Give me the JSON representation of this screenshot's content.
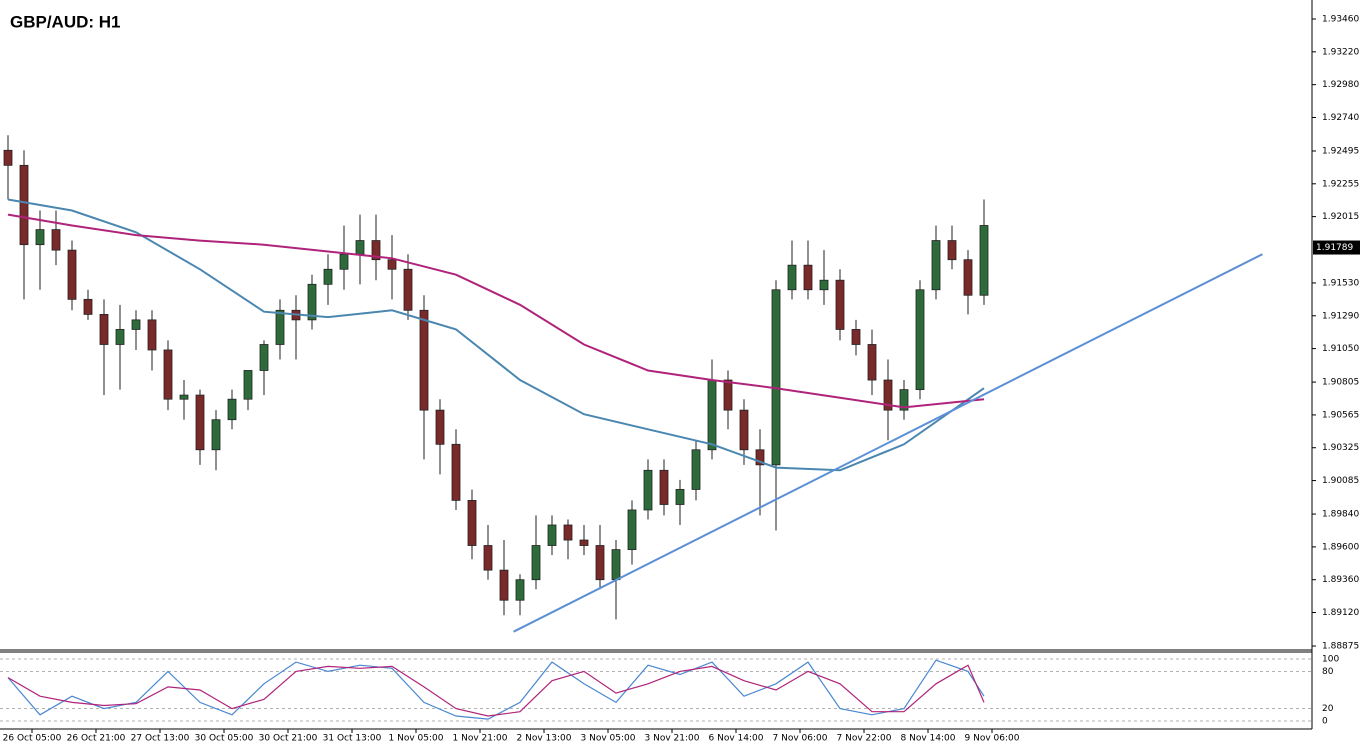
{
  "chart_data": {
    "type": "candlestick",
    "title": "GBP/AUD: H1",
    "up_color": "#2e6b3a",
    "down_color": "#7a2a2a",
    "ohlc": [
      [
        1.925,
        1.9261,
        1.9214,
        1.9239
      ],
      [
        1.9239,
        1.925,
        1.9141,
        1.9181
      ],
      [
        1.9181,
        1.9206,
        1.9148,
        1.9192
      ],
      [
        1.9192,
        1.9206,
        1.9166,
        1.9177
      ],
      [
        1.9177,
        1.9184,
        1.9133,
        1.9141
      ],
      [
        1.9141,
        1.9148,
        1.9126,
        1.913
      ],
      [
        1.913,
        1.9141,
        1.9071,
        1.9108
      ],
      [
        1.9108,
        1.9137,
        1.9075,
        1.9119
      ],
      [
        1.9119,
        1.9133,
        1.9104,
        1.9126
      ],
      [
        1.9126,
        1.9133,
        1.9089,
        1.9104
      ],
      [
        1.9104,
        1.9111,
        1.906,
        1.9068
      ],
      [
        1.9068,
        1.9082,
        1.9053,
        1.9071
      ],
      [
        1.9071,
        1.9075,
        1.902,
        1.9031
      ],
      [
        1.9031,
        1.906,
        1.9016,
        1.9053
      ],
      [
        1.9053,
        1.9075,
        1.9046,
        1.9068
      ],
      [
        1.9068,
        1.9089,
        1.906,
        1.9089
      ],
      [
        1.9089,
        1.9111,
        1.9071,
        1.9108
      ],
      [
        1.9108,
        1.9141,
        1.9097,
        1.9133
      ],
      [
        1.9133,
        1.9144,
        1.9097,
        1.9126
      ],
      [
        1.9126,
        1.9159,
        1.9119,
        1.9152
      ],
      [
        1.9152,
        1.9174,
        1.9137,
        1.9163
      ],
      [
        1.9163,
        1.9195,
        1.9148,
        1.9174
      ],
      [
        1.9174,
        1.9203,
        1.9152,
        1.9184
      ],
      [
        1.9184,
        1.9203,
        1.9155,
        1.917
      ],
      [
        1.917,
        1.9188,
        1.9141,
        1.9163
      ],
      [
        1.9163,
        1.9174,
        1.9126,
        1.9133
      ],
      [
        1.9133,
        1.9144,
        1.9024,
        1.906
      ],
      [
        1.906,
        1.9068,
        1.9013,
        1.9035
      ],
      [
        1.9035,
        1.9046,
        1.8987,
        1.8994
      ],
      [
        1.8994,
        1.9002,
        1.8951,
        1.8961
      ],
      [
        1.8961,
        1.8976,
        1.8936,
        1.8943
      ],
      [
        1.8943,
        1.8965,
        1.891,
        1.8921
      ],
      [
        1.8921,
        1.894,
        1.891,
        1.8936
      ],
      [
        1.8936,
        1.8983,
        1.8929,
        1.8961
      ],
      [
        1.8961,
        1.8983,
        1.8954,
        1.8976
      ],
      [
        1.8976,
        1.898,
        1.8951,
        1.8965
      ],
      [
        1.8965,
        1.8976,
        1.8954,
        1.8961
      ],
      [
        1.8961,
        1.8976,
        1.8929,
        1.8936
      ],
      [
        1.8936,
        1.8965,
        1.8907,
        1.8958
      ],
      [
        1.8958,
        1.8994,
        1.8947,
        1.8987
      ],
      [
        1.8987,
        1.9024,
        1.898,
        1.9016
      ],
      [
        1.9016,
        1.9024,
        1.8983,
        1.8991
      ],
      [
        1.8991,
        1.9009,
        1.8976,
        1.9002
      ],
      [
        1.9002,
        1.9038,
        1.8994,
        1.9031
      ],
      [
        1.9031,
        1.9097,
        1.9024,
        1.9082
      ],
      [
        1.9082,
        1.9089,
        1.9046,
        1.906
      ],
      [
        1.906,
        1.9068,
        1.902,
        1.9031
      ],
      [
        1.9031,
        1.9046,
        1.8983,
        1.902
      ],
      [
        1.902,
        1.9155,
        1.8972,
        1.9148
      ],
      [
        1.9148,
        1.9184,
        1.9141,
        1.9166
      ],
      [
        1.9166,
        1.9184,
        1.9141,
        1.9148
      ],
      [
        1.9148,
        1.9177,
        1.9137,
        1.9155
      ],
      [
        1.9155,
        1.9163,
        1.9111,
        1.9119
      ],
      [
        1.9119,
        1.9126,
        1.91,
        1.9108
      ],
      [
        1.9108,
        1.9119,
        1.9071,
        1.9082
      ],
      [
        1.9082,
        1.9097,
        1.9038,
        1.906
      ],
      [
        1.906,
        1.9082,
        1.9053,
        1.9075
      ],
      [
        1.9075,
        1.9155,
        1.9068,
        1.9148
      ],
      [
        1.9148,
        1.9195,
        1.9141,
        1.9184
      ],
      [
        1.9184,
        1.9195,
        1.9163,
        1.917
      ],
      [
        1.917,
        1.9177,
        1.913,
        1.9144
      ],
      [
        1.9144,
        1.9214,
        1.9137,
        1.9195
      ]
    ],
    "xlim": [
      -0.5,
      81.375
    ],
    "xticks": [
      {
        "value": 1.5,
        "label": "26 Oct 05:00"
      },
      {
        "value": 5.5,
        "label": "26 Oct 21:00"
      },
      {
        "value": 9.5,
        "label": "27 Oct 13:00"
      },
      {
        "value": 13.5,
        "label": "30 Oct 05:00"
      },
      {
        "value": 17.5,
        "label": "30 Oct 21:00"
      },
      {
        "value": 21.5,
        "label": "31 Oct 13:00"
      },
      {
        "value": 25.5,
        "label": "1 Nov 05:00"
      },
      {
        "value": 29.5,
        "label": "1 Nov 21:00"
      },
      {
        "value": 33.5,
        "label": "2 Nov 13:00"
      },
      {
        "value": 37.5,
        "label": "3 Nov 05:00"
      },
      {
        "value": 41.5,
        "label": "3 Nov 21:00"
      },
      {
        "value": 45.5,
        "label": "6 Nov 14:00"
      },
      {
        "value": 49.5,
        "label": "7 Nov 06:00"
      },
      {
        "value": 53.5,
        "label": "7 Nov 22:00"
      },
      {
        "value": 57.5,
        "label": "8 Nov 14:00"
      },
      {
        "value": 61.5,
        "label": "9 Nov 06:00"
      }
    ],
    "ylim": [
      1.88846,
      1.93599
    ],
    "yticks": [
      {
        "value": 1.9346,
        "label": "1.93460"
      },
      {
        "value": 1.9322,
        "label": "1.93220"
      },
      {
        "value": 1.9298,
        "label": "1.92980"
      },
      {
        "value": 1.9274,
        "label": "1.92740"
      },
      1.92495,
      1.92255,
      1.92015,
      {
        "value": 1.9153,
        "label": "1.91530"
      },
      {
        "value": 1.9129,
        "label": "1.91290"
      },
      {
        "value": 1.9105,
        "label": "1.91050"
      },
      1.90805,
      1.90565,
      1.90325,
      1.90085,
      {
        "value": 1.8984,
        "label": "1.89840"
      },
      {
        "value": 1.896,
        "label": "1.89600"
      },
      {
        "value": 1.8936,
        "label": "1.89360"
      },
      {
        "value": 1.8912,
        "label": "1.89120"
      },
      1.88875
    ],
    "last_price": 1.91789,
    "ma": [
      {
        "color": "#4a87b0",
        "x": [
          0,
          4,
          8,
          12,
          16,
          20,
          24,
          28,
          32,
          36,
          40,
          44,
          48,
          52,
          56,
          61
        ],
        "values": [
          1.9214,
          1.9206,
          1.919,
          1.9163,
          1.9132,
          1.9128,
          1.9133,
          1.9119,
          1.9082,
          1.9057,
          1.9046,
          1.9035,
          1.9018,
          1.9016,
          1.9035,
          1.9076
        ]
      },
      {
        "color": "#b0237a",
        "x": [
          0,
          4,
          8,
          12,
          16,
          20,
          24,
          28,
          32,
          36,
          40,
          44,
          48,
          52,
          56,
          61
        ],
        "values": [
          1.9203,
          1.9195,
          1.9188,
          1.9184,
          1.9181,
          1.9176,
          1.9171,
          1.9159,
          1.9137,
          1.9108,
          1.9089,
          1.9082,
          1.9076,
          1.9069,
          1.9062,
          1.9068
        ]
      }
    ],
    "trendline": {
      "color": "#5b8fd6",
      "x": [
        31.6,
        78.4
      ],
      "values": [
        1.8898,
        1.9174
      ]
    },
    "stochastic": {
      "ylim": [
        0,
        100
      ],
      "yticks": [
        100,
        80,
        20,
        0
      ],
      "series": [
        {
          "color": "#4a87d0",
          "x": [
            0,
            2,
            4,
            6,
            8,
            10,
            12,
            14,
            16,
            18,
            20,
            22,
            24,
            26,
            28,
            30,
            32,
            34,
            36,
            38,
            40,
            42,
            44,
            46,
            48,
            50,
            52,
            54,
            56,
            58,
            60,
            61
          ],
          "values": [
            70,
            10,
            40,
            20,
            30,
            80,
            30,
            10,
            60,
            95,
            80,
            90,
            85,
            30,
            8,
            3,
            30,
            95,
            60,
            30,
            90,
            75,
            95,
            40,
            60,
            95,
            20,
            10,
            20,
            98,
            80,
            40
          ]
        },
        {
          "color": "#b0237a",
          "x": [
            0,
            2,
            4,
            6,
            8,
            10,
            12,
            14,
            16,
            18,
            20,
            22,
            24,
            26,
            28,
            30,
            32,
            34,
            36,
            38,
            40,
            42,
            44,
            46,
            48,
            50,
            52,
            54,
            56,
            58,
            60,
            61
          ],
          "values": [
            70,
            40,
            30,
            25,
            28,
            55,
            50,
            20,
            35,
            80,
            88,
            85,
            88,
            55,
            20,
            8,
            15,
            65,
            80,
            45,
            60,
            80,
            88,
            65,
            50,
            80,
            60,
            15,
            15,
            60,
            90,
            30
          ]
        }
      ]
    }
  }
}
